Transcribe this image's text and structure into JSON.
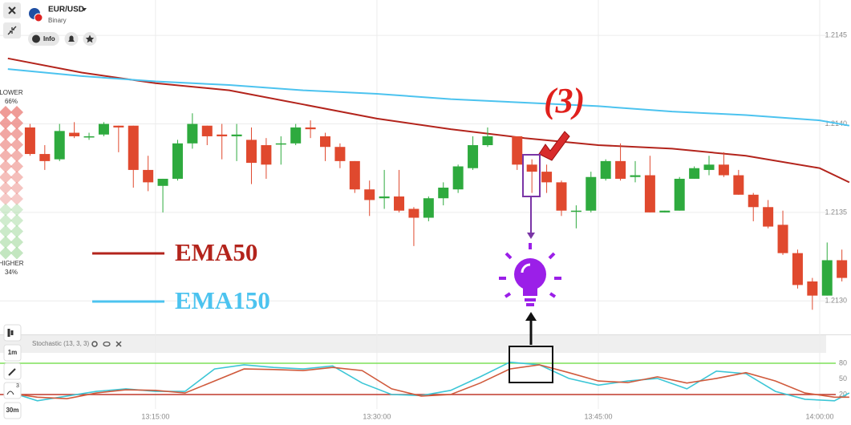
{
  "header": {
    "symbol": "EUR/USD",
    "market": "Binary",
    "info": "Info"
  },
  "sentiment": {
    "lower": "LOWER",
    "lower_pct": "66%",
    "higher": "HIGHER",
    "higher_pct": "34%"
  },
  "toolbar": {
    "badge": "3",
    "timeframes": [
      "1m",
      "30m"
    ]
  },
  "chart_data": [
    {
      "type": "candlestick",
      "x": [
        "13:06:30",
        "13:07:30",
        "13:08:30",
        "13:09:30",
        "13:10:30",
        "13:11:30",
        "13:12:30",
        "13:13:30",
        "13:14:30",
        "13:15:30",
        "13:16:30",
        "13:17:30",
        "13:18:30",
        "13:19:30",
        "13:20:30",
        "13:21:30",
        "13:22:30",
        "13:23:30",
        "13:24:30",
        "13:25:30",
        "13:26:30",
        "13:27:30",
        "13:28:30",
        "13:29:30",
        "13:30:30",
        "13:31:30",
        "13:32:30",
        "13:33:30",
        "13:34:30",
        "13:35:30",
        "13:36:30",
        "13:37:30",
        "13:39:30",
        "13:40:30",
        "13:41:30",
        "13:42:30",
        "13:43:30",
        "13:44:30",
        "13:45:30",
        "13:46:30",
        "13:47:30",
        "13:48:30",
        "13:49:30",
        "13:50:30",
        "13:51:30",
        "13:52:30",
        "13:53:30",
        "13:54:30",
        "13:55:30",
        "13:56:30",
        "13:57:30",
        "13:58:30",
        "13:59:30",
        "14:00:30",
        "14:01:30"
      ],
      "open": [
        1.21398,
        1.21383,
        1.2138,
        1.21395,
        1.21393,
        1.21394,
        1.21399,
        1.21399,
        1.21374,
        1.21365,
        1.21369,
        1.21389,
        1.21399,
        1.21394,
        1.21393,
        1.21391,
        1.21388,
        1.21389,
        1.21389,
        1.21398,
        1.21393,
        1.21387,
        1.21379,
        1.21363,
        1.21358,
        1.21359,
        1.21352,
        1.21347,
        1.21358,
        1.21363,
        1.21375,
        1.21388,
        1.21393,
        1.21377,
        1.21373,
        1.21367,
        1.21351,
        1.21351,
        1.21369,
        1.21379,
        1.2137,
        1.21371,
        1.2135,
        1.21351,
        1.21369,
        1.21374,
        1.21377,
        1.21371,
        1.2136,
        1.21353,
        1.21343,
        1.21327,
        1.21311,
        1.21303,
        1.21323
      ],
      "high": [
        1.214,
        1.21388,
        1.214,
        1.21401,
        1.21395,
        1.21401,
        1.21399,
        1.21399,
        1.21382,
        1.21369,
        1.21391,
        1.21406,
        1.21399,
        1.214,
        1.214,
        1.21398,
        1.21392,
        1.21393,
        1.214,
        1.21402,
        1.21395,
        1.21389,
        1.21379,
        1.21368,
        1.21374,
        1.21374,
        1.21353,
        1.21359,
        1.21367,
        1.21377,
        1.21393,
        1.21398,
        1.21393,
        1.2138,
        1.21377,
        1.21368,
        1.21354,
        1.21373,
        1.2138,
        1.21389,
        1.21379,
        1.21382,
        1.21351,
        1.2137,
        1.21376,
        1.21382,
        1.21384,
        1.21374,
        1.21361,
        1.21357,
        1.21351,
        1.21329,
        1.21313,
        1.21333,
        1.21329
      ],
      "low": [
        1.21382,
        1.21374,
        1.21379,
        1.21392,
        1.21391,
        1.21393,
        1.21384,
        1.21364,
        1.21362,
        1.2135,
        1.21368,
        1.21386,
        1.21388,
        1.2138,
        1.21379,
        1.21366,
        1.21369,
        1.21377,
        1.21388,
        1.21392,
        1.21379,
        1.21375,
        1.21361,
        1.21348,
        1.21352,
        1.2135,
        1.21331,
        1.21345,
        1.21354,
        1.21361,
        1.21374,
        1.21387,
        1.21374,
        1.21361,
        1.21361,
        1.21348,
        1.21341,
        1.2135,
        1.21368,
        1.21368,
        1.21367,
        1.2135,
        1.2135,
        1.21351,
        1.21369,
        1.21371,
        1.2137,
        1.2136,
        1.21345,
        1.21341,
        1.21326,
        1.21307,
        1.21295,
        1.21303,
        1.21311
      ],
      "close": [
        1.21383,
        1.21379,
        1.21396,
        1.21393,
        1.21393,
        1.214,
        1.21398,
        1.21374,
        1.21367,
        1.21369,
        1.21389,
        1.214,
        1.21393,
        1.21393,
        1.21394,
        1.21378,
        1.21377,
        1.21389,
        1.21398,
        1.21397,
        1.21387,
        1.21379,
        1.21363,
        1.21357,
        1.21359,
        1.21351,
        1.21347,
        1.21358,
        1.21364,
        1.21376,
        1.21388,
        1.21393,
        1.21377,
        1.21373,
        1.21367,
        1.21351,
        1.21351,
        1.2137,
        1.21379,
        1.21369,
        1.21371,
        1.2135,
        1.21351,
        1.21369,
        1.21375,
        1.21377,
        1.21371,
        1.2136,
        1.21353,
        1.21342,
        1.21327,
        1.21309,
        1.21303,
        1.21323,
        1.21313
      ],
      "up_color": "#2eaa3e",
      "down_color": "#e0492e",
      "series": [
        {
          "name": "EMA50",
          "color": "#b3241c",
          "x": [
            "13:05:00",
            "13:10:00",
            "13:15:00",
            "13:20:00",
            "13:25:00",
            "13:30:00",
            "13:35:00",
            "13:40:00",
            "13:45:00",
            "13:50:00",
            "13:55:00",
            "14:00:00",
            "14:02:00"
          ],
          "values": [
            1.21437,
            1.21429,
            1.21423,
            1.21419,
            1.21411,
            1.21403,
            1.21397,
            1.21392,
            1.21388,
            1.21386,
            1.21382,
            1.21375,
            1.21367
          ]
        },
        {
          "name": "EMA150",
          "color": "#4cc3ef",
          "x": [
            "13:05:00",
            "13:10:00",
            "13:15:00",
            "13:20:00",
            "13:25:00",
            "13:30:00",
            "13:35:00",
            "13:40:00",
            "13:45:00",
            "13:50:00",
            "13:55:00",
            "14:00:00",
            "14:02:00"
          ],
          "values": [
            1.21431,
            1.21427,
            1.21424,
            1.21422,
            1.21419,
            1.21417,
            1.21414,
            1.21412,
            1.2141,
            1.21407,
            1.21405,
            1.21402,
            1.21399
          ]
        }
      ],
      "xlim": [
        "13:04:28",
        "14:02:07"
      ],
      "ylim": [
        1.21282,
        1.2147
      ],
      "yticks": [
        {
          "value": 1.213,
          "label": "1.2130"
        },
        1.2135,
        {
          "value": 1.214,
          "label": "1.2140"
        },
        1.2145
      ],
      "grid": true,
      "annotation": "(3)"
    },
    {
      "type": "line",
      "title": "Stochastic (13, 3, 3)",
      "x": [
        "13:05:00",
        "13:07:00",
        "13:09:00",
        "13:11:00",
        "13:13:00",
        "13:15:00",
        "13:17:00",
        "13:19:00",
        "13:21:00",
        "13:23:00",
        "13:25:00",
        "13:27:00",
        "13:29:00",
        "13:31:00",
        "13:33:00",
        "13:35:00",
        "13:37:00",
        "13:39:00",
        "13:41:00",
        "13:43:00",
        "13:45:00",
        "13:47:00",
        "13:49:00",
        "13:51:00",
        "13:53:00",
        "13:55:00",
        "13:57:00",
        "13:59:00",
        "14:01:00",
        "14:02:00"
      ],
      "series": [
        {
          "color": "#3cc6d6",
          "values": [
            26,
            8,
            17,
            26,
            31,
            26,
            26,
            69,
            77,
            72,
            69,
            75,
            42,
            20,
            18,
            28,
            54,
            82,
            77,
            51,
            38,
            46,
            51,
            31,
            65,
            60,
            26,
            11,
            8,
            23
          ]
        },
        {
          "color": "#d05a3c",
          "values": [
            23,
            15,
            12,
            23,
            29,
            28,
            23,
            46,
            69,
            68,
            66,
            72,
            66,
            31,
            17,
            20,
            42,
            69,
            77,
            62,
            46,
            43,
            54,
            42,
            51,
            62,
            46,
            23,
            15,
            15
          ]
        }
      ],
      "levels": [
        80,
        20
      ],
      "level_colors": [
        "#7ee05a",
        "#c0392b"
      ],
      "xlim": [
        "13:04:28",
        "14:02:07"
      ],
      "ylim": [
        0,
        100
      ],
      "yticks": [
        80,
        50,
        20
      ],
      "xticks": [
        "13:15:00",
        "13:30:00",
        "13:45:00",
        "14:00:00"
      ]
    }
  ]
}
